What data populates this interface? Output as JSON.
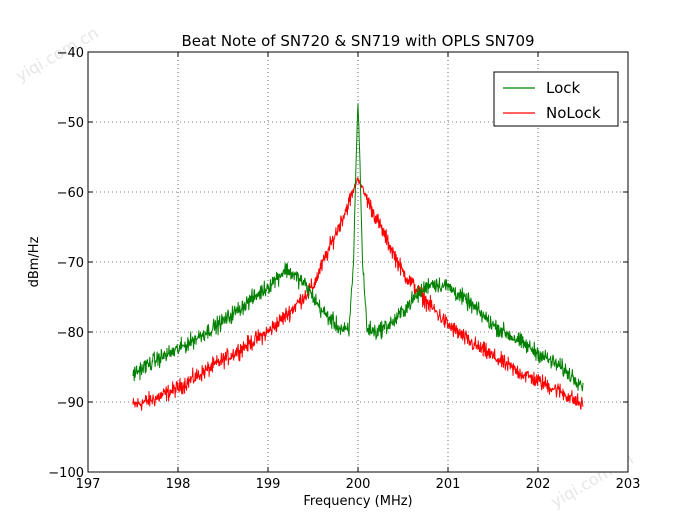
{
  "watermark": "yiqi.com.cn",
  "chart_data": {
    "type": "line",
    "title": "Beat Note of SN720 & SN719 with OPLS SN709",
    "xlabel": "Frequency (MHz)",
    "ylabel": "dBm/Hz",
    "xlim": [
      197,
      203
    ],
    "ylim": [
      -100,
      -40
    ],
    "xticks": [
      197,
      198,
      199,
      200,
      201,
      202,
      203
    ],
    "yticks": [
      -100,
      -90,
      -80,
      -70,
      -60,
      -50,
      -40
    ],
    "xtick_labels": [
      "197",
      "198",
      "199",
      "200",
      "201",
      "202",
      "203"
    ],
    "ytick_labels": [
      "−100",
      "−90",
      "−80",
      "−70",
      "−60",
      "−50",
      "−40"
    ],
    "grid": true,
    "legend_position": "upper-right",
    "series": [
      {
        "name": "Lock",
        "color": "#008000",
        "x": [
          197.5,
          197.75,
          198.0,
          198.25,
          198.5,
          198.75,
          199.0,
          199.2,
          199.4,
          199.6,
          199.8,
          199.9,
          199.95,
          199.98,
          200.0,
          200.02,
          200.05,
          200.1,
          200.2,
          200.4,
          200.6,
          200.8,
          201.0,
          201.25,
          201.5,
          201.75,
          202.0,
          202.25,
          202.5
        ],
        "y": [
          -86,
          -84,
          -82.5,
          -80.5,
          -78.5,
          -76,
          -73.5,
          -71,
          -73,
          -77,
          -79.5,
          -80,
          -70,
          -55,
          -47,
          -55,
          -70,
          -79.5,
          -80,
          -78.5,
          -75.5,
          -73,
          -73.5,
          -76,
          -79,
          -81,
          -83,
          -85,
          -87.5
        ]
      },
      {
        "name": "NoLock",
        "color": "#ff0000",
        "x": [
          197.5,
          197.75,
          198.0,
          198.25,
          198.5,
          198.75,
          199.0,
          199.25,
          199.5,
          199.75,
          199.9,
          200.0,
          200.1,
          200.25,
          200.5,
          200.75,
          201.0,
          201.25,
          201.5,
          201.75,
          202.0,
          202.25,
          202.5
        ],
        "y": [
          -90.5,
          -89.5,
          -88,
          -86,
          -84,
          -82,
          -80,
          -77,
          -73.5,
          -66,
          -61.5,
          -58,
          -61,
          -65,
          -71.5,
          -75.5,
          -79,
          -81.5,
          -83.5,
          -85.5,
          -87,
          -88.5,
          -90.5
        ]
      }
    ]
  }
}
